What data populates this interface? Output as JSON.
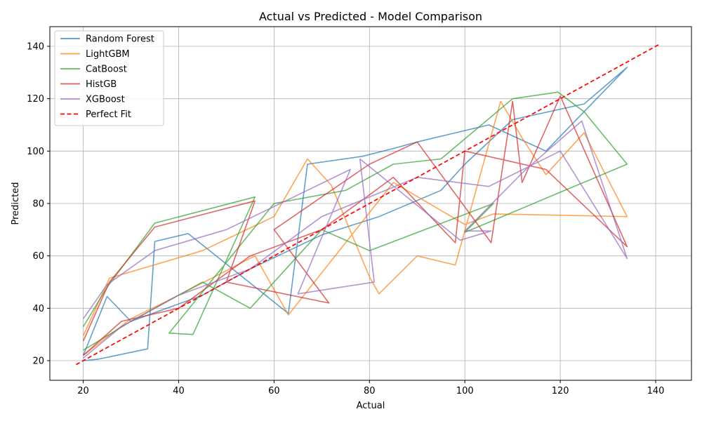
{
  "chart_data": {
    "type": "line",
    "title": "Actual vs Predicted - Model Comparison",
    "xlabel": "Actual",
    "ylabel": "Predicted",
    "xlim": [
      13,
      147.5
    ],
    "ylim": [
      12.5,
      147.5
    ],
    "xticks": [
      20,
      40,
      60,
      80,
      100,
      120,
      140
    ],
    "yticks": [
      20,
      40,
      60,
      80,
      100,
      120,
      140
    ],
    "grid": true,
    "legend_position": "top-left",
    "series": [
      {
        "name": "Random Forest",
        "color": "#1f77b4",
        "x": [
          20,
          23,
          33.5,
          35,
          42,
          63,
          67,
          78.5,
          85,
          90,
          105,
          117,
          134,
          125,
          110,
          100,
          95,
          82,
          70,
          55,
          45,
          30,
          25,
          20
        ],
        "y": [
          20,
          20.5,
          24.5,
          65.5,
          68.5,
          38,
          95,
          98,
          101,
          103.5,
          110,
          100,
          132,
          118,
          112,
          95,
          85,
          75,
          68,
          55,
          45,
          35,
          44.5,
          22
        ]
      },
      {
        "name": "LightGBM",
        "color": "#ff7f0e",
        "x": [
          20,
          25.5,
          45,
          60,
          67,
          72,
          80,
          82,
          90,
          98,
          107.5,
          112,
          117,
          125,
          134,
          106,
          100,
          85,
          63,
          56,
          40,
          30,
          20
        ],
        "y": [
          29.5,
          51.5,
          62,
          75,
          97,
          87,
          52,
          45.5,
          60,
          56.5,
          119,
          105,
          91,
          107,
          75,
          76,
          72,
          88,
          37.5,
          60,
          45,
          36,
          22
        ]
      },
      {
        "name": "CatBoost",
        "color": "#2ca02c",
        "x": [
          20,
          25,
          35,
          56,
          43,
          38,
          60,
          75,
          85,
          95,
          110,
          119.5,
          125,
          134,
          100,
          106,
          80,
          70,
          55,
          45,
          30,
          20
        ],
        "y": [
          33,
          48,
          72.5,
          82.5,
          30,
          30.5,
          80,
          85,
          95,
          97,
          120,
          122.5,
          115,
          95,
          69,
          80,
          62,
          70,
          40,
          50,
          35,
          24
        ]
      },
      {
        "name": "HistGB",
        "color": "#d62728",
        "x": [
          20,
          25.5,
          35,
          56,
          50,
          71.5,
          60,
          80,
          90,
          105.5,
          110,
          112,
          120,
          134,
          117,
          100,
          98,
          85,
          70,
          55,
          40,
          28,
          20
        ],
        "y": [
          27.5,
          50,
          71,
          81,
          50,
          42,
          70,
          95,
          103.5,
          65,
          119,
          88,
          121,
          63.5,
          93,
          100,
          65,
          90,
          70,
          60,
          40,
          35,
          22
        ]
      },
      {
        "name": "XGBoost",
        "color": "#9467bd",
        "x": [
          20,
          25,
          35,
          50,
          76,
          65,
          81,
          78,
          99,
          105.5,
          100,
          112.5,
          124.5,
          134,
          120,
          105,
          90,
          70,
          55,
          40,
          28,
          20
        ],
        "y": [
          36,
          49,
          62,
          70,
          93,
          45.5,
          50,
          97,
          66,
          69.5,
          69.5,
          92.5,
          111.5,
          59,
          100,
          86.5,
          90,
          75,
          55,
          45,
          33,
          21
        ]
      }
    ],
    "reference_line": {
      "name": "Perfect Fit",
      "color": "#ff0000",
      "style": "dashed",
      "x": [
        18.5,
        141
      ],
      "y": [
        18.5,
        141
      ]
    }
  }
}
